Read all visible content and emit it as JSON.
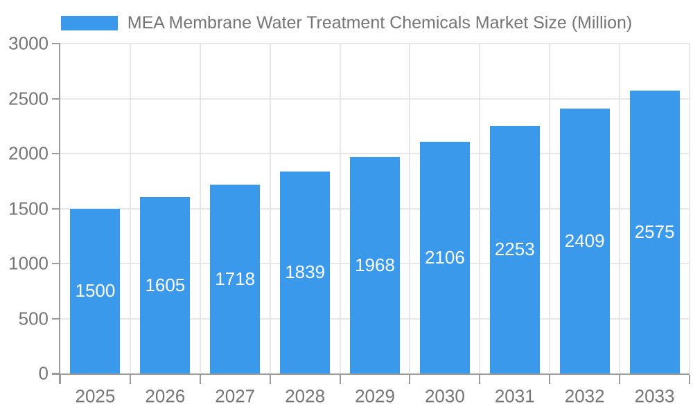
{
  "legend": {
    "label": "MEA Membrane Water Treatment Chemicals Market Size (Million)"
  },
  "colors": {
    "bar": "#3B99EC",
    "axis": "#9B9B9B",
    "grid": "#E7E7E7",
    "tick_label": "#757575",
    "title": "#757575",
    "value_label": "#FFFFFF"
  },
  "chart_data": {
    "type": "bar",
    "title": "MEA Membrane Water Treatment Chemicals Market Size (Million)",
    "categories": [
      "2025",
      "2026",
      "2027",
      "2028",
      "2029",
      "2030",
      "2031",
      "2032",
      "2033"
    ],
    "values": [
      1500,
      1605,
      1718,
      1839,
      1968,
      2106,
      2253,
      2409,
      2575
    ],
    "series": [
      {
        "name": "MEA Membrane Water Treatment Chemicals Market Size (Million)",
        "values": [
          1500,
          1605,
          1718,
          1839,
          1968,
          2106,
          2253,
          2409,
          2575
        ]
      }
    ],
    "xlabel": "",
    "ylabel": "",
    "ylim": [
      0,
      3000
    ],
    "yticks": [
      0,
      500,
      1000,
      1500,
      2000,
      2500,
      3000
    ],
    "grid": true,
    "legend_position": "top",
    "value_labels": "inside-center"
  }
}
